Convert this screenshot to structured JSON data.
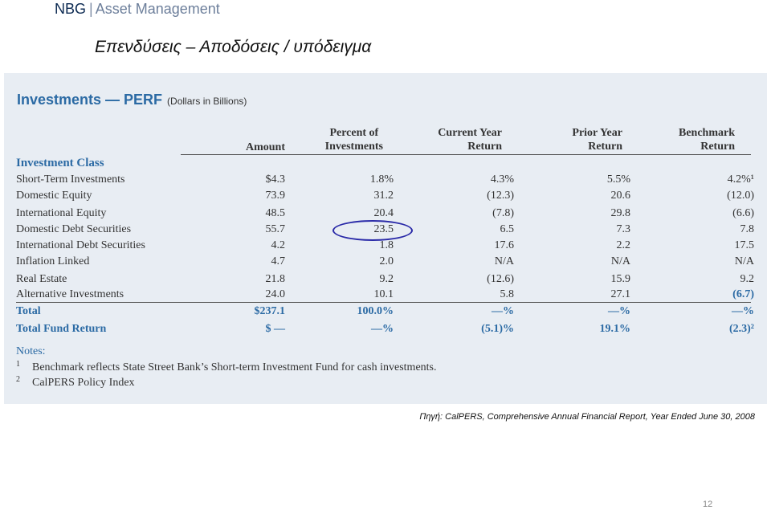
{
  "header": {
    "brand": "NBG",
    "divider": "|",
    "subtitle": "Asset Management"
  },
  "slide_title": "Επενδύσεις – Αποδόσεις / υπόδειγμα",
  "table": {
    "title": "Investments — PERF",
    "title_note": "(Dollars in Billions)",
    "columns": {
      "amount": "Amount",
      "percent_l1": "Percent of",
      "percent_l2": "Investments",
      "current_l1": "Current Year",
      "current_l2": "Return",
      "prior_l1": "Prior Year",
      "prior_l2": "Return",
      "bench_l1": "Benchmark",
      "bench_l2": "Return"
    },
    "section_label": "Investment Class",
    "rows": [
      {
        "label": "Short-Term Investments",
        "amount": "$4.3",
        "percent": "1.8%",
        "current": "4.3%",
        "prior": "5.5%",
        "benchmark": "4.2%¹"
      },
      {
        "label": "Domestic Equity",
        "amount": "73.9",
        "percent": "31.2",
        "current": "(12.3)",
        "prior": "20.6",
        "benchmark": "(12.0)"
      },
      {
        "label": "International Equity",
        "amount": "48.5",
        "percent": "20.4",
        "current": "(7.8)",
        "prior": "29.8",
        "benchmark": "(6.6)"
      },
      {
        "label": "Domestic Debt Securities",
        "amount": "55.7",
        "percent": "23.5",
        "current": "6.5",
        "prior": "7.3",
        "benchmark": "7.8"
      },
      {
        "label": "International Debt Securities",
        "amount": "4.2",
        "percent": "1.8",
        "current": "17.6",
        "prior": "2.2",
        "benchmark": "17.5"
      },
      {
        "label": "Inflation Linked",
        "amount": "4.7",
        "percent": "2.0",
        "current": "N/A",
        "prior": "N/A",
        "benchmark": "N/A"
      },
      {
        "label": "Real Estate",
        "amount": "21.8",
        "percent": "9.2",
        "current": "(12.6)",
        "prior": "15.9",
        "benchmark": "9.2"
      },
      {
        "label": "Alternative Investments",
        "amount": "24.0",
        "percent": "10.1",
        "current": "5.8",
        "prior": "27.1",
        "benchmark": "(6.7)"
      }
    ],
    "total": {
      "label": "Total",
      "amount": "$237.1",
      "percent": "100.0%",
      "current": "—%",
      "prior": "—%",
      "benchmark": "—%"
    },
    "total_fund_return": {
      "label": "Total Fund Return",
      "amount": "$ —",
      "percent": "—%",
      "current": "(5.1)%",
      "prior": "19.1%",
      "benchmark": "(2.3)²"
    },
    "notes_heading": "Notes:",
    "notes": [
      {
        "marker": "1",
        "text": "Benchmark reflects State Street Bank’s Short-term Investment Fund for cash investments."
      },
      {
        "marker": "2",
        "text": "CalPERS Policy Index"
      }
    ]
  },
  "source": "Πηγή: CalPERS, Comprehensive Annual Financial Report, Year Ended June 30, 2008",
  "page_number": "12"
}
